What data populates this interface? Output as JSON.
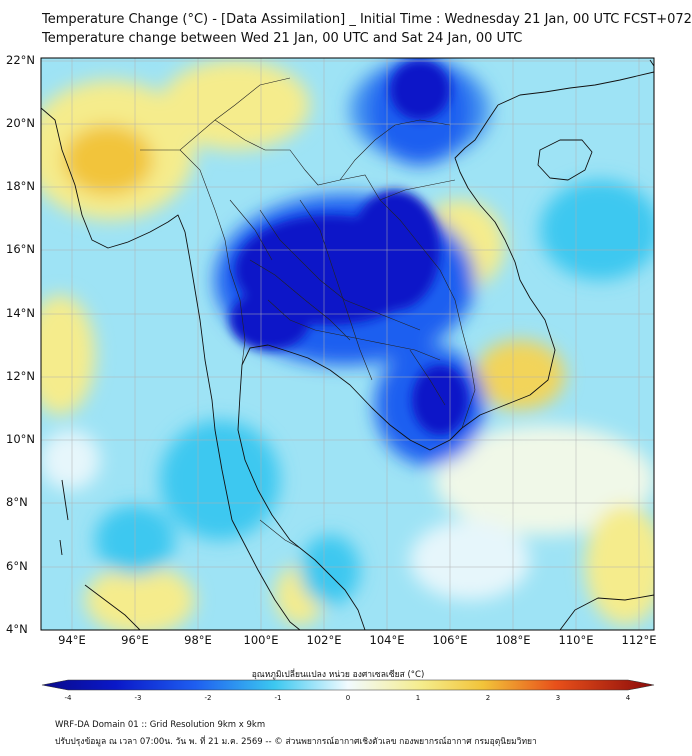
{
  "title_line1": "Temperature Change (°C) - [Data Assimilation] _ Initial Time : Wednesday 21 Jan, 00 UTC FCST+072",
  "title_line2": "Temperature change between Wed 21 Jan, 00 UTC and Sat 24 Jan, 00 UTC",
  "lat_labels": [
    "22°N",
    "20°N",
    "18°N",
    "16°N",
    "14°N",
    "12°N",
    "10°N",
    "8°N",
    "6°N",
    "4°N"
  ],
  "lon_labels": [
    "94°E",
    "96°E",
    "98°E",
    "100°E",
    "102°E",
    "104°E",
    "106°E",
    "108°E",
    "110°E",
    "112°E"
  ],
  "colorbar_label": "อุณหภูมิเปลี่ยนแปลง หน่วย องศาเซลเซียส (°C)",
  "colorbar_ticks": [
    "-4",
    "-3",
    "-2",
    "-1",
    "0",
    "1",
    "2",
    "3",
    "4"
  ],
  "footer_line1": "WRF-DA Domain 01 :: Grid Resolution 9km x 9km",
  "footer_line2": "ปรับปรุงข้อมูล ณ เวลา 07:00น. วัน พ. ที่ 21 ม.ค. 2569 -- © ส่วนพยากรณ์อากาศเชิงตัวเลข กองพยากรณ์อากาศ กรมอุตุนิยมวิทยา",
  "colors": {
    "cold_strong": "#0a18c8",
    "cold": "#1e5ef0",
    "cool": "#3cc8f0",
    "near_zero": "#e6f6fb",
    "warm": "#f5ec8c",
    "warm_strong": "#f2c43a"
  },
  "map_data": {
    "lat_range": [
      4,
      22.2
    ],
    "lon_range": [
      93,
      112.5
    ],
    "variable": "temperature change",
    "units": "°C",
    "colorbar_range": [
      -4,
      4
    ]
  }
}
